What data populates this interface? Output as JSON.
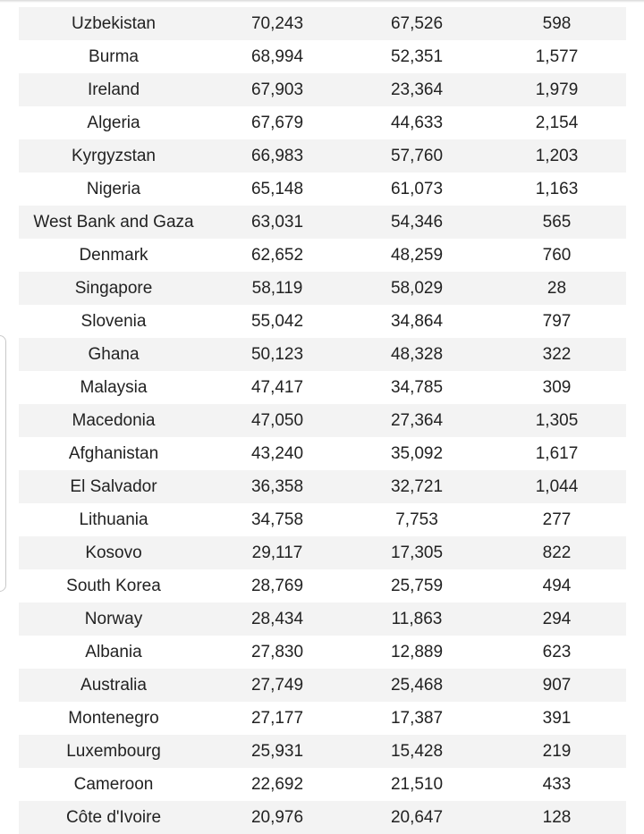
{
  "table": {
    "rows": [
      [
        "Uzbekistan",
        "70,243",
        "67,526",
        "598"
      ],
      [
        "Burma",
        "68,994",
        "52,351",
        "1,577"
      ],
      [
        "Ireland",
        "67,903",
        "23,364",
        "1,979"
      ],
      [
        "Algeria",
        "67,679",
        "44,633",
        "2,154"
      ],
      [
        "Kyrgyzstan",
        "66,983",
        "57,760",
        "1,203"
      ],
      [
        "Nigeria",
        "65,148",
        "61,073",
        "1,163"
      ],
      [
        "West Bank and Gaza",
        "63,031",
        "54,346",
        "565"
      ],
      [
        "Denmark",
        "62,652",
        "48,259",
        "760"
      ],
      [
        "Singapore",
        "58,119",
        "58,029",
        "28"
      ],
      [
        "Slovenia",
        "55,042",
        "34,864",
        "797"
      ],
      [
        "Ghana",
        "50,123",
        "48,328",
        "322"
      ],
      [
        "Malaysia",
        "47,417",
        "34,785",
        "309"
      ],
      [
        "Macedonia",
        "47,050",
        "27,364",
        "1,305"
      ],
      [
        "Afghanistan",
        "43,240",
        "35,092",
        "1,617"
      ],
      [
        "El Salvador",
        "36,358",
        "32,721",
        "1,044"
      ],
      [
        "Lithuania",
        "34,758",
        "7,753",
        "277"
      ],
      [
        "Kosovo",
        "29,117",
        "17,305",
        "822"
      ],
      [
        "South Korea",
        "28,769",
        "25,759",
        "494"
      ],
      [
        "Norway",
        "28,434",
        "11,863",
        "294"
      ],
      [
        "Albania",
        "27,830",
        "12,889",
        "623"
      ],
      [
        "Australia",
        "27,749",
        "25,468",
        "907"
      ],
      [
        "Montenegro",
        "27,177",
        "17,387",
        "391"
      ],
      [
        "Luxembourg",
        "25,931",
        "15,428",
        "219"
      ],
      [
        "Cameroon",
        "22,692",
        "21,510",
        "433"
      ],
      [
        "Côte d'Ivoire",
        "20,976",
        "20,647",
        "128"
      ]
    ]
  },
  "colors": {
    "stripe": "#f3f3f3",
    "text": "#222222"
  }
}
